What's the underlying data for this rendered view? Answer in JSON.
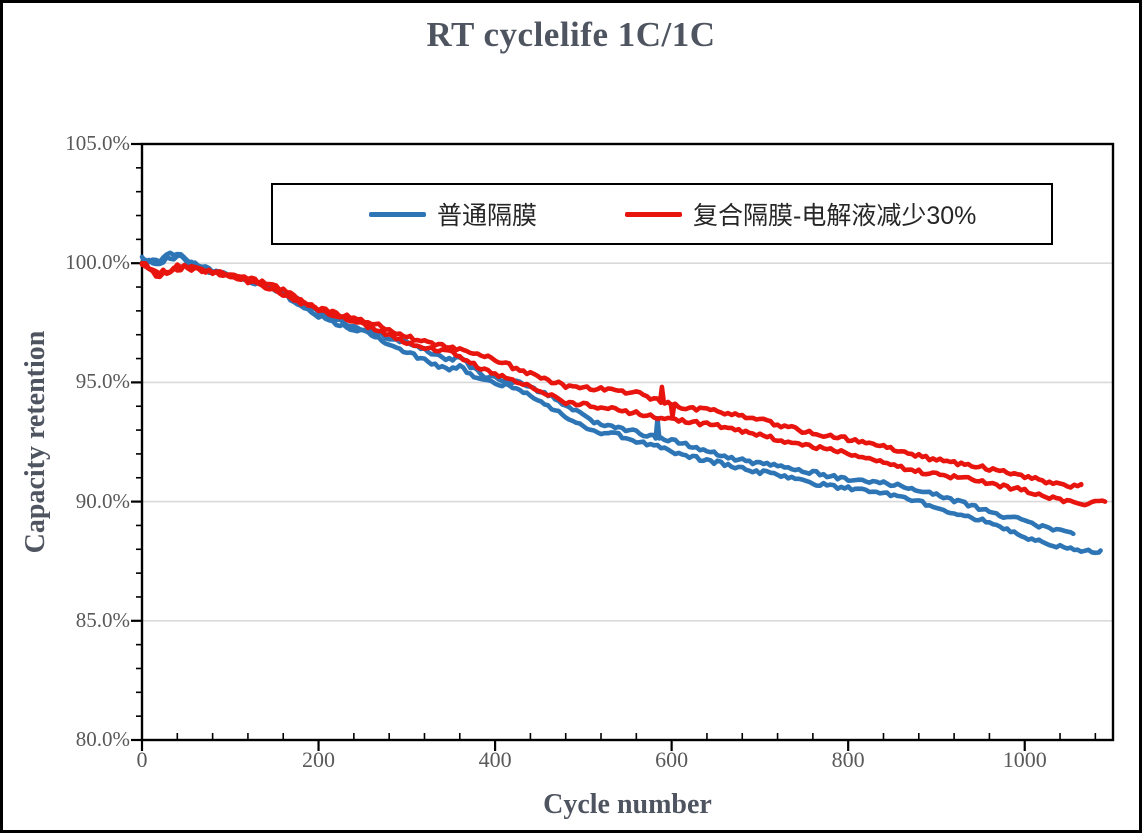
{
  "chart_data": {
    "type": "line",
    "title": "RT cyclelife 1C/1C",
    "xlabel": "Cycle number",
    "ylabel": "Capacity retention",
    "xlim": [
      0,
      1100
    ],
    "ylim": [
      80,
      105
    ],
    "x_major_ticks": [
      0,
      200,
      400,
      600,
      800,
      1000
    ],
    "x_tick_labels": [
      "0",
      "200",
      "400",
      "600",
      "800",
      "1000"
    ],
    "x_minor_step": 40,
    "y_major_ticks": [
      105,
      100,
      95,
      90,
      85,
      80
    ],
    "y_tick_labels": [
      "105.0%",
      "100.0%",
      "95.0%",
      "90.0%",
      "85.0%",
      "80.0%"
    ],
    "y_minor_step": 1,
    "gridlines": {
      "horizontal_at": [
        100,
        95,
        90,
        85
      ],
      "color": "#d9d9d9"
    },
    "legend_position": "top-center-boxed",
    "axis_color": "#000000",
    "tick_label_color": "#595959",
    "title_color": "#4f5560",
    "series": [
      {
        "name": "普通隔膜",
        "color": "#2e75b6",
        "lines": [
          {
            "anchors": [
              [
                0,
                100.15
              ],
              [
                10,
                100.05
              ],
              [
                22,
                100.1
              ],
              [
                32,
                100.3
              ],
              [
                46,
                100.25
              ],
              [
                60,
                99.95
              ],
              [
                80,
                99.7
              ],
              [
                100,
                99.55
              ],
              [
                125,
                99.25
              ],
              [
                150,
                98.95
              ],
              [
                175,
                98.45
              ],
              [
                200,
                97.9
              ],
              [
                250,
                97.3
              ],
              [
                307,
                96.5
              ],
              [
                345,
                95.95
              ],
              [
                360,
                96.05
              ],
              [
                386,
                95.35
              ],
              [
                420,
                95.05
              ],
              [
                450,
                94.6
              ],
              [
                480,
                94.05
              ],
              [
                510,
                93.4
              ],
              [
                535,
                93.2
              ],
              [
                560,
                92.9
              ],
              [
                584,
                92.65
              ],
              [
                600,
                92.5
              ],
              [
                650,
                92.05
              ],
              [
                700,
                91.6
              ],
              [
                750,
                91.25
              ],
              [
                800,
                91.0
              ],
              [
                850,
                90.7
              ],
              [
                900,
                90.3
              ],
              [
                950,
                89.75
              ],
              [
                980,
                89.35
              ],
              [
                1005,
                89.15
              ],
              [
                1015,
                88.95
              ],
              [
                1030,
                88.85
              ],
              [
                1045,
                88.75
              ],
              [
                1055,
                88.65
              ]
            ],
            "spikes": [
              {
                "cycle": 584,
                "delta": 0.85
              }
            ]
          },
          {
            "anchors": [
              [
                0,
                100.1
              ],
              [
                10,
                100.0
              ],
              [
                22,
                100.05
              ],
              [
                32,
                100.25
              ],
              [
                46,
                100.2
              ],
              [
                60,
                99.9
              ],
              [
                80,
                99.65
              ],
              [
                100,
                99.5
              ],
              [
                125,
                99.2
              ],
              [
                150,
                98.85
              ],
              [
                175,
                98.35
              ],
              [
                200,
                97.8
              ],
              [
                250,
                97.15
              ],
              [
                307,
                96.1
              ],
              [
                345,
                95.6
              ],
              [
                360,
                95.7
              ],
              [
                386,
                95.1
              ],
              [
                420,
                94.75
              ],
              [
                450,
                94.2
              ],
              [
                480,
                93.6
              ],
              [
                510,
                93.0
              ],
              [
                535,
                92.85
              ],
              [
                560,
                92.5
              ],
              [
                584,
                92.25
              ],
              [
                600,
                92.1
              ],
              [
                650,
                91.7
              ],
              [
                700,
                91.2
              ],
              [
                750,
                90.85
              ],
              [
                800,
                90.6
              ],
              [
                850,
                90.25
              ],
              [
                900,
                89.8
              ],
              [
                950,
                89.25
              ],
              [
                1000,
                88.45
              ],
              [
                1040,
                88.15
              ],
              [
                1066,
                88.0
              ],
              [
                1086,
                87.95
              ]
            ],
            "spikes": []
          }
        ]
      },
      {
        "name": "复合隔膜-电解液减少30%",
        "color": "#e8150f",
        "lines": [
          {
            "anchors": [
              [
                0,
                100.0
              ],
              [
                8,
                99.8
              ],
              [
                18,
                99.6
              ],
              [
                30,
                99.7
              ],
              [
                42,
                99.9
              ],
              [
                60,
                99.85
              ],
              [
                80,
                99.65
              ],
              [
                100,
                99.5
              ],
              [
                125,
                99.25
              ],
              [
                150,
                99.0
              ],
              [
                175,
                98.6
              ],
              [
                200,
                98.15
              ],
              [
                250,
                97.55
              ],
              [
                307,
                96.85
              ],
              [
                350,
                96.5
              ],
              [
                386,
                96.15
              ],
              [
                420,
                95.6
              ],
              [
                450,
                95.25
              ],
              [
                480,
                94.9
              ],
              [
                520,
                94.7
              ],
              [
                560,
                94.5
              ],
              [
                600,
                94.1
              ],
              [
                650,
                93.8
              ],
              [
                700,
                93.4
              ],
              [
                750,
                93.0
              ],
              [
                800,
                92.6
              ],
              [
                850,
                92.2
              ],
              [
                900,
                91.8
              ],
              [
                950,
                91.4
              ],
              [
                1000,
                91.05
              ],
              [
                1030,
                90.85
              ],
              [
                1050,
                90.65
              ],
              [
                1064,
                90.7
              ]
            ],
            "spikes": [
              {
                "cycle": 589,
                "delta": 0.6
              },
              {
                "cycle": 601,
                "delta": -0.55
              }
            ]
          },
          {
            "anchors": [
              [
                0,
                99.95
              ],
              [
                8,
                99.75
              ],
              [
                18,
                99.55
              ],
              [
                30,
                99.65
              ],
              [
                42,
                99.85
              ],
              [
                60,
                99.8
              ],
              [
                80,
                99.6
              ],
              [
                100,
                99.45
              ],
              [
                125,
                99.15
              ],
              [
                150,
                98.9
              ],
              [
                175,
                98.5
              ],
              [
                200,
                98.05
              ],
              [
                250,
                97.4
              ],
              [
                307,
                96.6
              ],
              [
                350,
                96.3
              ],
              [
                386,
                95.5
              ],
              [
                420,
                95.1
              ],
              [
                450,
                94.7
              ],
              [
                480,
                94.2
              ],
              [
                520,
                93.9
              ],
              [
                560,
                93.7
              ],
              [
                600,
                93.5
              ],
              [
                650,
                93.15
              ],
              [
                700,
                92.8
              ],
              [
                750,
                92.4
              ],
              [
                800,
                92.0
              ],
              [
                850,
                91.55
              ],
              [
                900,
                91.15
              ],
              [
                950,
                90.8
              ],
              [
                1000,
                90.5
              ],
              [
                1040,
                90.1
              ],
              [
                1070,
                89.85
              ],
              [
                1091,
                90.0
              ]
            ],
            "spikes": []
          }
        ]
      }
    ]
  }
}
